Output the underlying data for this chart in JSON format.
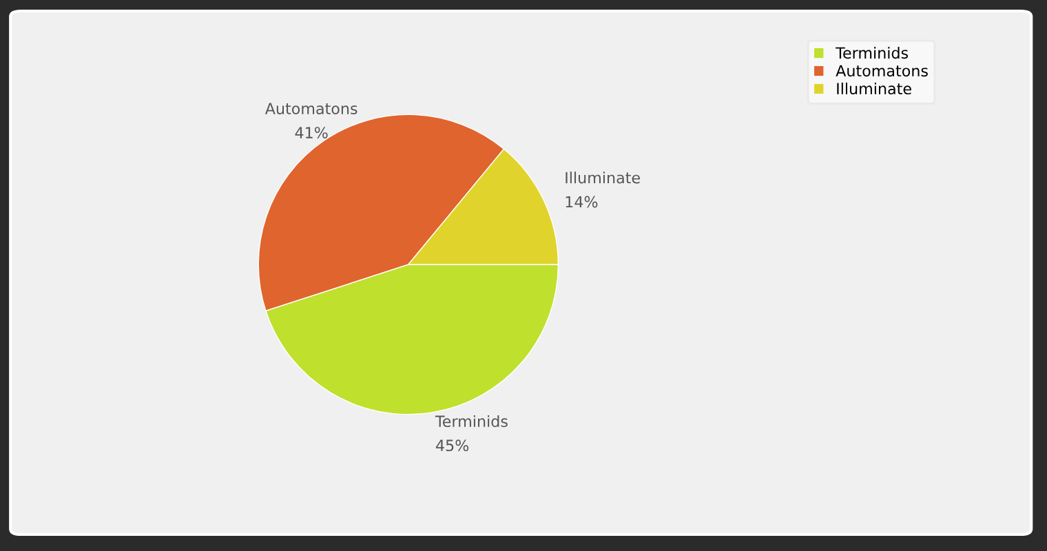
{
  "chart_data": {
    "type": "pie",
    "categories": [
      "Terminids",
      "Automatons",
      "Illuminate"
    ],
    "values": [
      45,
      41,
      14
    ],
    "colors": [
      "#bfe02c",
      "#e0642e",
      "#e0d42c"
    ],
    "value_labels": [
      "45%",
      "41%",
      "14%"
    ],
    "legend": "top right"
  }
}
